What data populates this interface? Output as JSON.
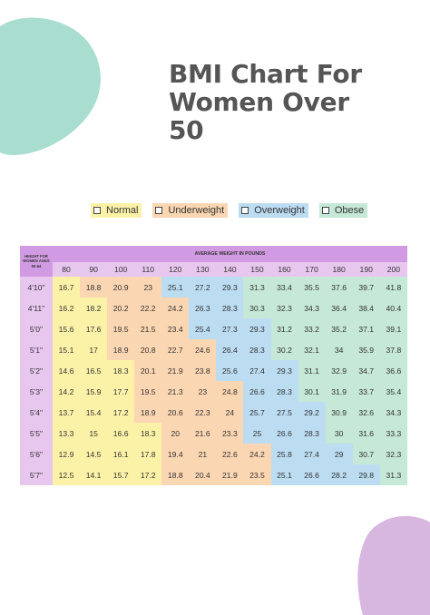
{
  "title": "BMI Chart For Women Over 50",
  "legend": [
    {
      "label": "Normal",
      "color": "#fbf2a8"
    },
    {
      "label": "Underweight",
      "color": "#fbd6b2"
    },
    {
      "label": "Overweight",
      "color": "#bcdcf2"
    },
    {
      "label": "Obese",
      "color": "#c6e8d6"
    }
  ],
  "table": {
    "height_header": "HEIGHT FOR WOMEN AGES 50-64",
    "weight_header": "AVERAGE WEIGHT IN POUNDS",
    "weights": [
      "80",
      "90",
      "100",
      "110",
      "120",
      "130",
      "140",
      "150",
      "160",
      "170",
      "180",
      "190",
      "200"
    ],
    "rows": [
      {
        "height": "4'10\"",
        "values": [
          "16.7",
          "18.8",
          "20.9",
          "23",
          "25.1",
          "27.2",
          "29.3",
          "31.3",
          "33.4",
          "35.5",
          "37.6",
          "39.7",
          "41.8"
        ]
      },
      {
        "height": "4'11\"",
        "values": [
          "16.2",
          "18.2",
          "20.2",
          "22.2",
          "24.2",
          "26.3",
          "28.3",
          "30.3",
          "32.3",
          "34.3",
          "36.4",
          "38.4",
          "40.4"
        ]
      },
      {
        "height": "5'0\"",
        "values": [
          "15.6",
          "17.6",
          "19.5",
          "21.5",
          "23.4",
          "25.4",
          "27.3",
          "29.3",
          "31.2",
          "33.2",
          "35.2",
          "37.1",
          "39.1"
        ]
      },
      {
        "height": "5'1\"",
        "values": [
          "15.1",
          "17",
          "18.9",
          "20.8",
          "22.7",
          "24.6",
          "26.4",
          "28.3",
          "30.2",
          "32.1",
          "34",
          "35.9",
          "37.8"
        ]
      },
      {
        "height": "5'2\"",
        "values": [
          "14.6",
          "16.5",
          "18.3",
          "20.1",
          "21.9",
          "23.8",
          "25.6",
          "27.4",
          "29.3",
          "31.1",
          "32.9",
          "34.7",
          "36.6"
        ]
      },
      {
        "height": "5'3\"",
        "values": [
          "14.2",
          "15.9",
          "17.7",
          "19.5",
          "21.3",
          "23",
          "24.8",
          "26.6",
          "28.3",
          "30.1",
          "31.9",
          "33.7",
          "35.4"
        ]
      },
      {
        "height": "5'4\"",
        "values": [
          "13.7",
          "15.4",
          "17.2",
          "18.9",
          "20.6",
          "22.3",
          "24",
          "25.7",
          "27.5",
          "29.2",
          "30.9",
          "32.6",
          "34.3"
        ]
      },
      {
        "height": "5'5\"",
        "values": [
          "13.3",
          "15",
          "16.6",
          "18.3",
          "20",
          "21.6",
          "23.3",
          "25",
          "26.6",
          "28.3",
          "30",
          "31.6",
          "33.3"
        ]
      },
      {
        "height": "5'6\"",
        "values": [
          "12.9",
          "14.5",
          "16.1",
          "17.8",
          "19.4",
          "21",
          "22.6",
          "24.2",
          "25.8",
          "27.4",
          "29",
          "30.7",
          "32.3"
        ]
      },
      {
        "height": "5'7\"",
        "values": [
          "12.5",
          "14.1",
          "15.7",
          "17.2",
          "18.8",
          "20.4",
          "21.9",
          "23.5",
          "25.1",
          "26.6",
          "28.2",
          "29.8",
          "31.3"
        ]
      }
    ]
  }
}
